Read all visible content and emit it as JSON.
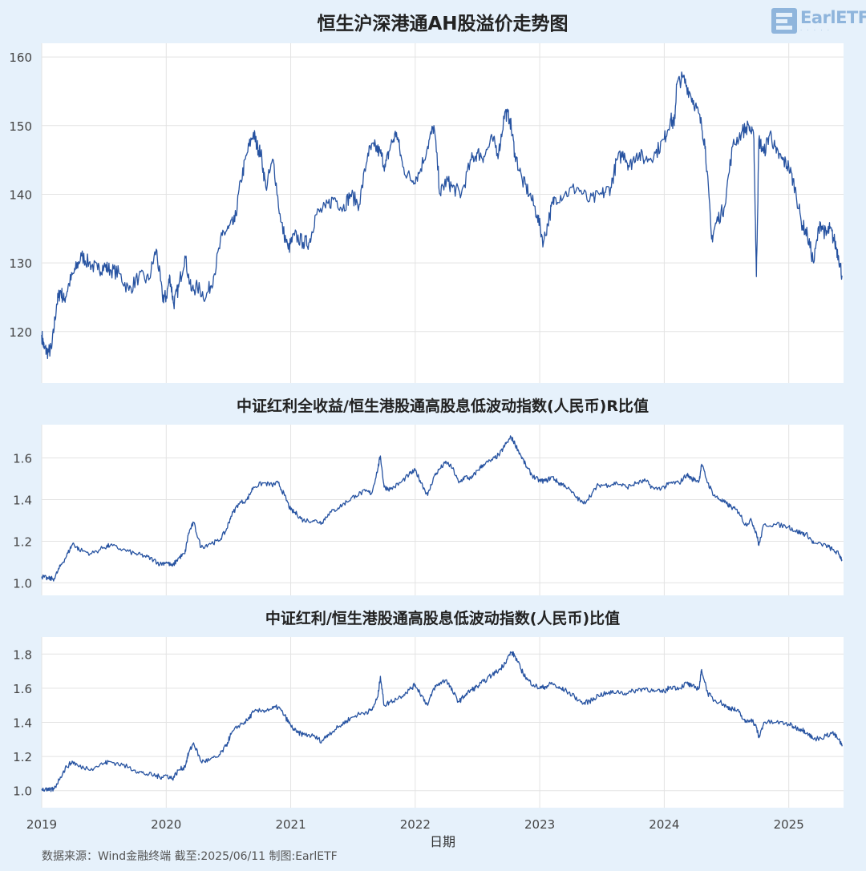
{
  "title": "恒生沪深港通AH股溢价走势图",
  "brand": {
    "logo_text": "EarlETF"
  },
  "colors": {
    "line": "#2753a1",
    "background": "#e6f1fb",
    "plot_bg": "#ffffff",
    "grid": "#e3e3e3",
    "text": "#333333"
  },
  "footer": {
    "source": "数据来源：Wind金融终端 截至:2025/06/11 制图:EarlETF"
  },
  "chart_data": [
    {
      "type": "line",
      "title": "",
      "xlabel": "",
      "ylabel": "",
      "xlim": [
        2019.0,
        2025.44
      ],
      "ylim": [
        112.5,
        162
      ],
      "yticks": [
        120,
        130,
        140,
        150,
        160
      ],
      "grid": true,
      "series": [
        {
          "x": [
            2019.0,
            2019.02,
            2019.05,
            2019.08,
            2019.12,
            2019.15,
            2019.18,
            2019.22,
            2019.27,
            2019.32,
            2019.38,
            2019.45,
            2019.5,
            2019.55,
            2019.62,
            2019.7,
            2019.78,
            2019.86,
            2019.92,
            2019.97,
            2020.0,
            2020.03,
            2020.06,
            2020.1,
            2020.15,
            2020.2,
            2020.25,
            2020.32,
            2020.38,
            2020.45,
            2020.5,
            2020.55,
            2020.6,
            2020.65,
            2020.7,
            2020.73,
            2020.76,
            2020.8,
            2020.86,
            2020.92,
            2020.98,
            2021.03,
            2021.1,
            2021.15,
            2021.2,
            2021.28,
            2021.35,
            2021.42,
            2021.48,
            2021.55,
            2021.62,
            2021.67,
            2021.72,
            2021.76,
            2021.8,
            2021.85,
            2021.9,
            2021.97,
            2022.03,
            2022.1,
            2022.15,
            2022.2,
            2022.25,
            2022.3,
            2022.37,
            2022.45,
            2022.5,
            2022.55,
            2022.62,
            2022.67,
            2022.72,
            2022.76,
            2022.8,
            2022.86,
            2022.92,
            2022.98,
            2023.03,
            2023.08,
            2023.12,
            2023.2,
            2023.3,
            2023.4,
            2023.5,
            2023.57,
            2023.62,
            2023.68,
            2023.72,
            2023.78,
            2023.85,
            2023.93,
            2024.0,
            2024.05,
            2024.08,
            2024.1,
            2024.15,
            2024.2,
            2024.25,
            2024.3,
            2024.33,
            2024.38,
            2024.42,
            2024.48,
            2024.55,
            2024.62,
            2024.68,
            2024.72,
            2024.74,
            2024.76,
            2024.8,
            2024.85,
            2024.9,
            2024.95,
            2025.0,
            2025.05,
            2025.1,
            2025.15,
            2025.2,
            2025.25,
            2025.3,
            2025.33,
            2025.37,
            2025.4,
            2025.43
          ],
          "values": [
            119.5,
            117.5,
            117.0,
            117.5,
            124,
            126,
            124.5,
            127,
            129,
            131,
            130,
            129,
            129.5,
            129,
            128.5,
            126,
            128,
            127.5,
            132,
            125,
            125,
            128,
            124,
            126.5,
            131,
            126,
            126.5,
            125,
            128,
            134,
            135,
            136,
            142,
            146,
            149,
            147,
            146,
            141,
            145,
            136,
            132,
            134,
            133,
            133,
            137,
            138,
            139.5,
            138,
            140,
            138.5,
            146,
            147,
            146,
            144,
            147,
            149,
            144,
            142,
            143,
            147,
            150,
            140,
            142,
            141,
            140,
            145,
            146,
            145.5,
            148,
            146,
            152,
            151,
            146,
            142,
            140,
            137,
            133,
            137,
            139.5,
            140,
            141,
            139,
            140,
            141,
            145,
            146,
            144,
            146,
            145,
            146,
            148,
            151,
            150,
            156,
            157,
            155,
            153,
            150,
            147,
            133.5,
            136,
            138,
            147,
            149,
            150,
            148,
            128,
            148,
            146,
            149,
            146,
            145,
            144,
            141,
            136,
            134,
            130,
            136,
            134,
            135,
            133,
            131,
            128
          ]
        }
      ]
    },
    {
      "type": "line",
      "title": "中证红利全收益/恒生港股通高股息低波动指数(人民币)R比值",
      "xlabel": "",
      "ylabel": "",
      "xlim": [
        2019.0,
        2025.44
      ],
      "ylim": [
        0.94,
        1.76
      ],
      "yticks": [
        1.0,
        1.2,
        1.4,
        1.6
      ],
      "grid": true,
      "series": [
        {
          "x": [
            2019.0,
            2019.05,
            2019.1,
            2019.15,
            2019.2,
            2019.25,
            2019.3,
            2019.4,
            2019.5,
            2019.55,
            2019.65,
            2019.75,
            2019.82,
            2019.9,
            2019.95,
            2020.0,
            2020.05,
            2020.1,
            2020.15,
            2020.18,
            2020.22,
            2020.28,
            2020.35,
            2020.42,
            2020.48,
            2020.52,
            2020.58,
            2020.65,
            2020.7,
            2020.78,
            2020.85,
            2020.9,
            2020.95,
            2021.0,
            2021.05,
            2021.1,
            2021.18,
            2021.25,
            2021.3,
            2021.38,
            2021.45,
            2021.52,
            2021.6,
            2021.65,
            2021.7,
            2021.72,
            2021.75,
            2021.8,
            2021.88,
            2021.95,
            2022.0,
            2022.05,
            2022.1,
            2022.15,
            2022.2,
            2022.25,
            2022.3,
            2022.35,
            2022.4,
            2022.45,
            2022.5,
            2022.55,
            2022.62,
            2022.68,
            2022.72,
            2022.77,
            2022.8,
            2022.85,
            2022.9,
            2022.95,
            2023.0,
            2023.05,
            2023.1,
            2023.15,
            2023.2,
            2023.28,
            2023.35,
            2023.42,
            2023.47,
            2023.55,
            2023.62,
            2023.7,
            2023.78,
            2023.85,
            2023.92,
            2024.0,
            2024.05,
            2024.12,
            2024.18,
            2024.22,
            2024.28,
            2024.3,
            2024.35,
            2024.4,
            2024.45,
            2024.5,
            2024.55,
            2024.6,
            2024.65,
            2024.7,
            2024.74,
            2024.76,
            2024.8,
            2024.9,
            2025.0,
            2025.05,
            2025.1,
            2025.15,
            2025.2,
            2025.3,
            2025.35,
            2025.4,
            2025.43
          ],
          "values": [
            1.03,
            1.02,
            1.02,
            1.08,
            1.13,
            1.19,
            1.16,
            1.14,
            1.17,
            1.18,
            1.16,
            1.14,
            1.13,
            1.11,
            1.09,
            1.1,
            1.08,
            1.12,
            1.14,
            1.24,
            1.29,
            1.17,
            1.19,
            1.2,
            1.25,
            1.32,
            1.38,
            1.4,
            1.46,
            1.48,
            1.47,
            1.48,
            1.42,
            1.35,
            1.33,
            1.3,
            1.3,
            1.29,
            1.33,
            1.36,
            1.39,
            1.42,
            1.44,
            1.43,
            1.55,
            1.61,
            1.46,
            1.45,
            1.48,
            1.52,
            1.54,
            1.48,
            1.42,
            1.51,
            1.55,
            1.58,
            1.55,
            1.48,
            1.51,
            1.5,
            1.54,
            1.57,
            1.59,
            1.62,
            1.66,
            1.7,
            1.67,
            1.61,
            1.55,
            1.51,
            1.49,
            1.49,
            1.51,
            1.48,
            1.47,
            1.42,
            1.38,
            1.43,
            1.47,
            1.47,
            1.48,
            1.46,
            1.48,
            1.49,
            1.45,
            1.46,
            1.48,
            1.48,
            1.52,
            1.5,
            1.49,
            1.57,
            1.48,
            1.42,
            1.4,
            1.38,
            1.36,
            1.34,
            1.28,
            1.3,
            1.24,
            1.18,
            1.28,
            1.28,
            1.27,
            1.25,
            1.24,
            1.23,
            1.19,
            1.18,
            1.16,
            1.14,
            1.11
          ]
        }
      ]
    },
    {
      "type": "line",
      "title": "中证红利/恒生港股通高股息低波动指数(人民币)比值",
      "xlabel": "日期",
      "ylabel": "",
      "xlim": [
        2019.0,
        2025.44
      ],
      "ylim": [
        0.9,
        1.9
      ],
      "yticks": [
        1.0,
        1.2,
        1.4,
        1.6,
        1.8
      ],
      "xticks": [
        "2019",
        "2020",
        "2021",
        "2022",
        "2023",
        "2024",
        "2025"
      ],
      "grid": true,
      "series": [
        {
          "x": [
            2019.0,
            2019.05,
            2019.1,
            2019.15,
            2019.2,
            2019.25,
            2019.3,
            2019.4,
            2019.5,
            2019.55,
            2019.65,
            2019.75,
            2019.82,
            2019.9,
            2019.95,
            2020.0,
            2020.05,
            2020.1,
            2020.15,
            2020.18,
            2020.22,
            2020.28,
            2020.35,
            2020.42,
            2020.48,
            2020.52,
            2020.58,
            2020.65,
            2020.7,
            2020.78,
            2020.85,
            2020.9,
            2020.95,
            2021.0,
            2021.05,
            2021.1,
            2021.18,
            2021.25,
            2021.3,
            2021.38,
            2021.45,
            2021.52,
            2021.6,
            2021.65,
            2021.7,
            2021.72,
            2021.75,
            2021.8,
            2021.88,
            2021.95,
            2022.0,
            2022.05,
            2022.1,
            2022.15,
            2022.2,
            2022.25,
            2022.3,
            2022.35,
            2022.4,
            2022.45,
            2022.5,
            2022.55,
            2022.62,
            2022.68,
            2022.72,
            2022.77,
            2022.8,
            2022.85,
            2022.9,
            2022.95,
            2023.0,
            2023.05,
            2023.1,
            2023.15,
            2023.2,
            2023.28,
            2023.35,
            2023.42,
            2023.47,
            2023.55,
            2023.62,
            2023.7,
            2023.78,
            2023.85,
            2023.92,
            2024.0,
            2024.05,
            2024.12,
            2024.18,
            2024.22,
            2024.28,
            2024.3,
            2024.35,
            2024.4,
            2024.45,
            2024.5,
            2024.55,
            2024.6,
            2024.65,
            2024.7,
            2024.74,
            2024.76,
            2024.8,
            2024.9,
            2025.0,
            2025.05,
            2025.1,
            2025.15,
            2025.2,
            2025.3,
            2025.35,
            2025.4,
            2025.43
          ],
          "values": [
            1.01,
            1.0,
            1.01,
            1.08,
            1.14,
            1.17,
            1.14,
            1.13,
            1.16,
            1.17,
            1.15,
            1.12,
            1.1,
            1.09,
            1.08,
            1.09,
            1.07,
            1.12,
            1.14,
            1.22,
            1.28,
            1.17,
            1.18,
            1.2,
            1.26,
            1.33,
            1.38,
            1.41,
            1.46,
            1.47,
            1.48,
            1.49,
            1.44,
            1.38,
            1.34,
            1.33,
            1.32,
            1.29,
            1.33,
            1.37,
            1.41,
            1.44,
            1.46,
            1.47,
            1.55,
            1.67,
            1.5,
            1.52,
            1.55,
            1.59,
            1.62,
            1.56,
            1.5,
            1.6,
            1.63,
            1.65,
            1.58,
            1.52,
            1.56,
            1.59,
            1.61,
            1.64,
            1.68,
            1.71,
            1.75,
            1.81,
            1.79,
            1.71,
            1.65,
            1.62,
            1.6,
            1.61,
            1.63,
            1.6,
            1.59,
            1.55,
            1.51,
            1.53,
            1.56,
            1.57,
            1.58,
            1.57,
            1.59,
            1.6,
            1.58,
            1.58,
            1.61,
            1.6,
            1.63,
            1.61,
            1.6,
            1.71,
            1.57,
            1.53,
            1.52,
            1.49,
            1.48,
            1.46,
            1.4,
            1.42,
            1.37,
            1.31,
            1.4,
            1.4,
            1.39,
            1.37,
            1.36,
            1.34,
            1.3,
            1.32,
            1.34,
            1.3,
            1.26
          ]
        }
      ]
    }
  ]
}
